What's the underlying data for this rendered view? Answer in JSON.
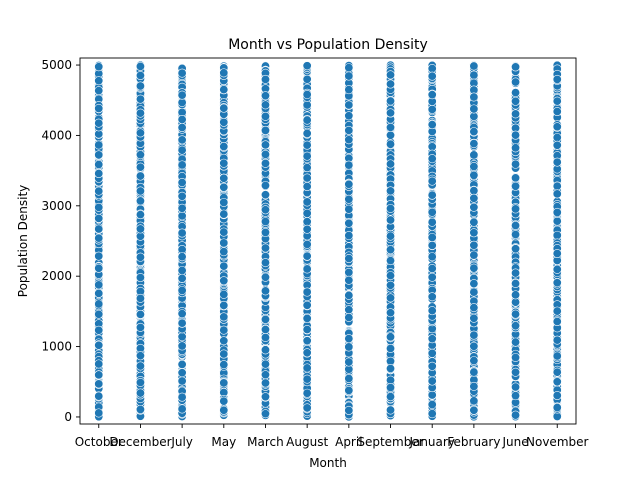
{
  "chart_data": {
    "type": "scatter",
    "title": "Month vs Population Density",
    "xlabel": "Month",
    "ylabel": "Population Density",
    "categories": [
      "October",
      "December",
      "July",
      "May",
      "March",
      "August",
      "April",
      "September",
      "January",
      "February",
      "June",
      "November"
    ],
    "ylim": [
      -100,
      5100
    ],
    "yticks": [
      0,
      1000,
      2000,
      3000,
      4000,
      5000
    ],
    "grid": false,
    "series": [
      {
        "color": "#1f77b4",
        "points_per_category": 300,
        "value_range": [
          0,
          5000
        ],
        "distribution": "approximately uniform across the full range for every month"
      }
    ]
  }
}
